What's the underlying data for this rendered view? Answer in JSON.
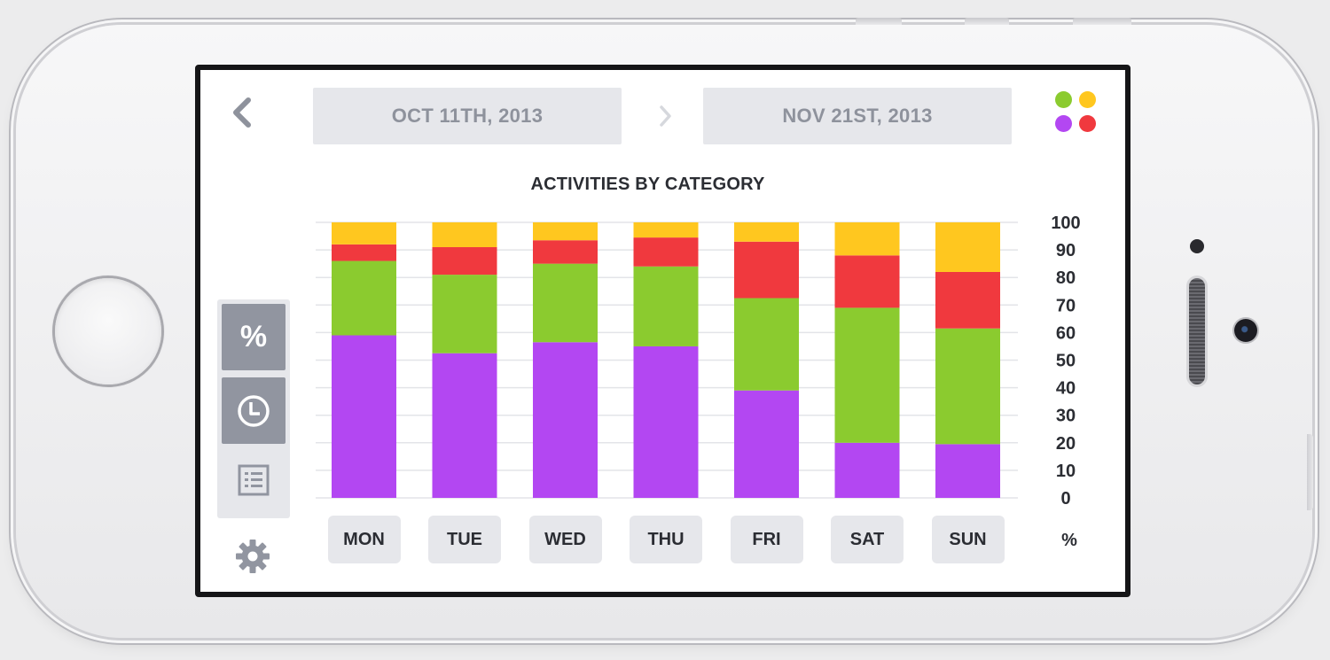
{
  "header": {
    "back_icon": "chevron-left-icon",
    "start_date": "OCT 11TH, 2013",
    "end_date": "NOV 21ST, 2013",
    "range_icon": "chevron-right-icon",
    "legend_dots_icon": "four-dots-icon"
  },
  "colors": {
    "category_1": "#b347f2",
    "category_2": "#8bcb2f",
    "category_3": "#f0393e",
    "category_4": "#ffc71f"
  },
  "sidebar": {
    "modes": [
      {
        "label": "%",
        "icon": "percent-icon",
        "active": true
      },
      {
        "label": "",
        "icon": "clock-icon",
        "active": true
      },
      {
        "label": "",
        "icon": "list-icon",
        "active": false
      }
    ],
    "settings_icon": "gear-icon"
  },
  "chart_data": {
    "type": "bar",
    "stacked": true,
    "title": "ACTIVITIES BY CATEGORY",
    "categories": [
      "MON",
      "TUE",
      "WED",
      "THU",
      "FRI",
      "SAT",
      "SUN"
    ],
    "series": [
      {
        "color": "#b347f2",
        "values": [
          59,
          52.5,
          56.5,
          55,
          39,
          20,
          19.5
        ]
      },
      {
        "color": "#8bcb2f",
        "values": [
          27,
          28.5,
          28.5,
          29,
          33.5,
          49,
          42
        ]
      },
      {
        "color": "#f0393e",
        "values": [
          6,
          10,
          8.5,
          10.5,
          20.5,
          19,
          20.5
        ]
      },
      {
        "color": "#ffc71f",
        "values": [
          8,
          9,
          6.5,
          5.5,
          7,
          12,
          18
        ]
      }
    ],
    "ylim": [
      0,
      100
    ],
    "yticks": [
      0,
      10,
      20,
      30,
      40,
      50,
      60,
      70,
      80,
      90,
      100
    ],
    "yaxis_position": "right",
    "unit_label": "%",
    "grid": true
  }
}
